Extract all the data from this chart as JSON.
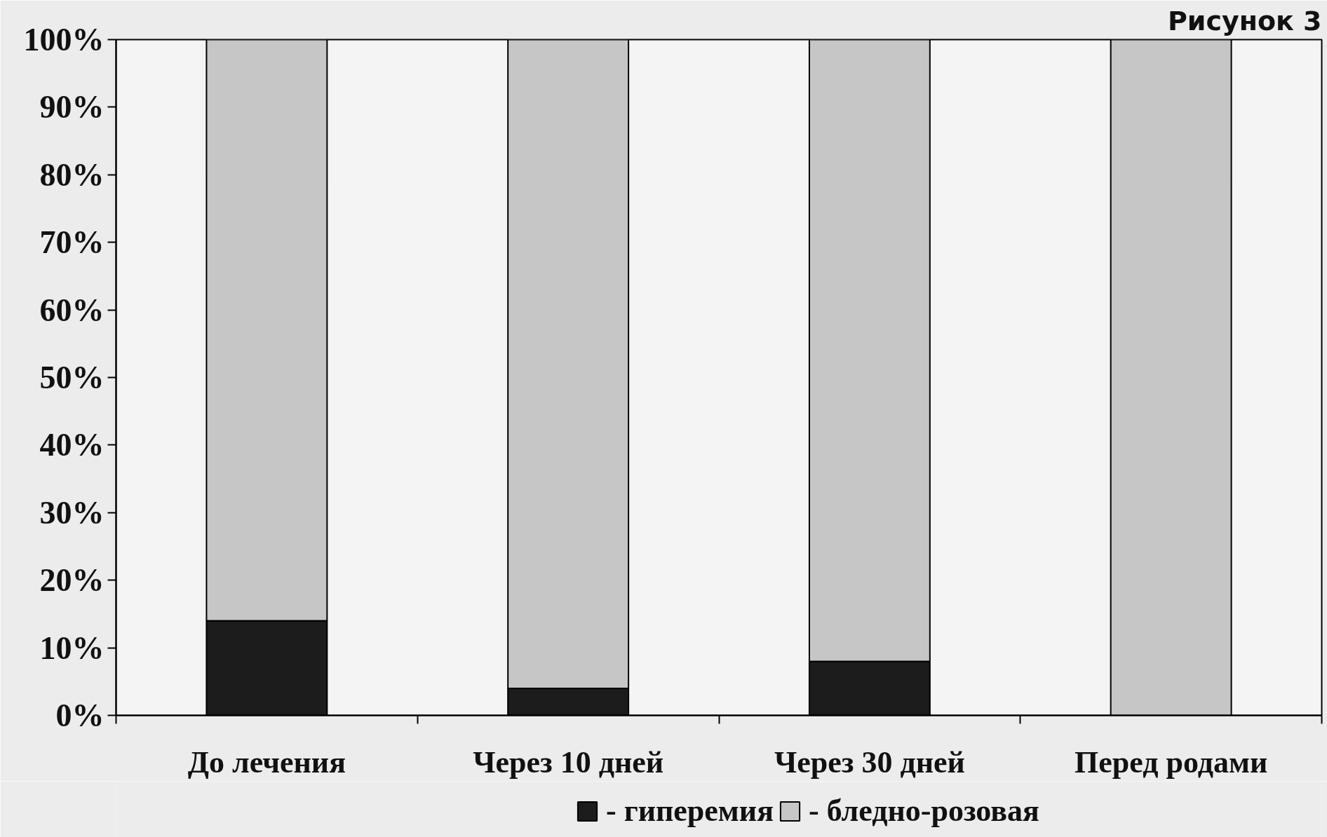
{
  "chart_data": {
    "type": "bar",
    "title": "Рисунок 3",
    "categories": [
      "До лечения",
      "Через 10 дней",
      "Через 30 дней",
      "Перед родами"
    ],
    "stacked": true,
    "series": [
      {
        "name": "- гиперемия",
        "color": "#1c1c1c",
        "values": [
          14,
          4,
          8,
          0
        ]
      },
      {
        "name": "- бледно-розовая",
        "color": "#c6c6c6",
        "values": [
          86,
          96,
          92,
          100
        ]
      }
    ],
    "ylim": [
      0,
      100
    ],
    "yticks": [
      {
        "value": 0,
        "label": "0%"
      },
      {
        "value": 10,
        "label": "10%"
      },
      {
        "value": 20,
        "label": "20%"
      },
      {
        "value": 30,
        "label": "30%"
      },
      {
        "value": 40,
        "label": "40%"
      },
      {
        "value": 50,
        "label": "50%"
      },
      {
        "value": 60,
        "label": "60%"
      },
      {
        "value": 70,
        "label": "70%"
      },
      {
        "value": 80,
        "label": "80%"
      },
      {
        "value": 90,
        "label": "90%"
      },
      {
        "value": 100,
        "label": "100%"
      }
    ],
    "grid": false,
    "legend": "bottom"
  }
}
